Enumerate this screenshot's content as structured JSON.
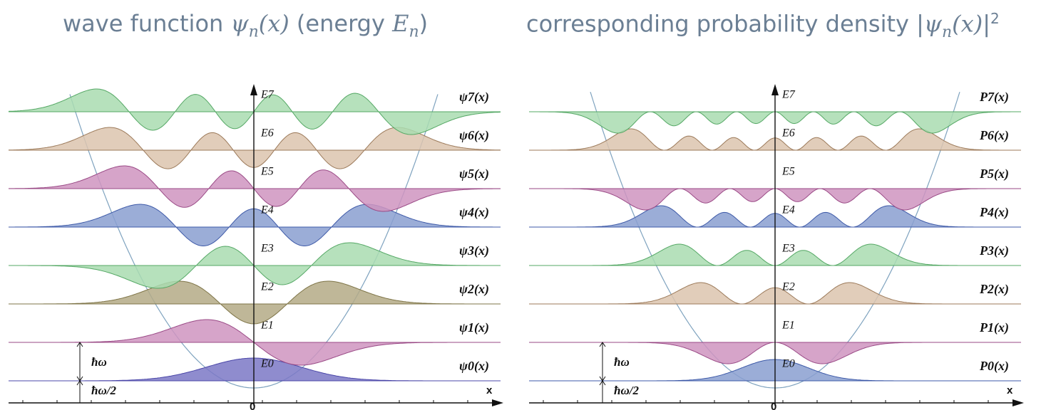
{
  "left_panel": {
    "title": {
      "prefix": "wave function ",
      "psi": "ψ",
      "n": "n",
      "x": "(x)",
      "mid": " (energy ",
      "E": "E",
      "n2": "n",
      "end": ")"
    },
    "energy_labels": [
      "E0",
      "E1",
      "E2",
      "E3",
      "E4",
      "E5",
      "E6",
      "E7"
    ],
    "psi_labels": [
      "ψ0(x)",
      "ψ1(x)",
      "ψ2(x)",
      "ψ3(x)",
      "ψ4(x)",
      "ψ5(x)",
      "ψ6(x)",
      "ψ7(x)"
    ],
    "hbar_omega": "ħω",
    "hbar_omega_half": "ħω/2",
    "x_axis_label": "x",
    "origin_label": "0"
  },
  "right_panel": {
    "title": {
      "prefix": "corresponding probability density |",
      "psi": "ψ",
      "n": "n",
      "x": "(x)",
      "end": "|",
      "sup": "2"
    },
    "energy_labels": [
      "E0",
      "E1",
      "E2",
      "E3",
      "E4",
      "E5",
      "E6",
      "E7"
    ],
    "p_labels": [
      "P0(x)",
      "P1(x)",
      "P2(x)",
      "P3(x)",
      "P4(x)",
      "P5(x)",
      "P6(x)",
      "P7(x)"
    ],
    "hbar_omega": "ħω",
    "hbar_omega_half": "ħω/2",
    "x_axis_label": "x",
    "origin_label": "0"
  },
  "colors": {
    "title": "#6b7f94",
    "potential": "#7fa3bf",
    "levels": [
      {
        "fill": "#7b78c6",
        "stroke": "#4b47a8"
      },
      {
        "fill": "#cf94c0",
        "stroke": "#9a4a86"
      },
      {
        "fill": "#b4aa86",
        "stroke": "#7f7548"
      },
      {
        "fill": "#a9dcb0",
        "stroke": "#55a865"
      },
      {
        "fill": "#8a9fd0",
        "stroke": "#3e5aa8"
      },
      {
        "fill": "#cf94c0",
        "stroke": "#9a4a86"
      },
      {
        "fill": "#dcc4ae",
        "stroke": "#9c7a5a"
      },
      {
        "fill": "#a9dcb0",
        "stroke": "#55a865"
      }
    ],
    "levels_right": [
      {
        "fill": "#8a9fd0",
        "stroke": "#3e5aa8"
      },
      {
        "fill": "#cf94c0",
        "stroke": "#9a4a86"
      },
      {
        "fill": "#dcc4ae",
        "stroke": "#9c7a5a"
      },
      {
        "fill": "#a9dcb0",
        "stroke": "#55a865"
      },
      {
        "fill": "#8a9fd0",
        "stroke": "#3e5aa8"
      },
      {
        "fill": "#cf94c0",
        "stroke": "#9a4a86"
      },
      {
        "fill": "#dcc4ae",
        "stroke": "#9c7a5a"
      },
      {
        "fill": "#a9dcb0",
        "stroke": "#55a865"
      }
    ]
  }
}
